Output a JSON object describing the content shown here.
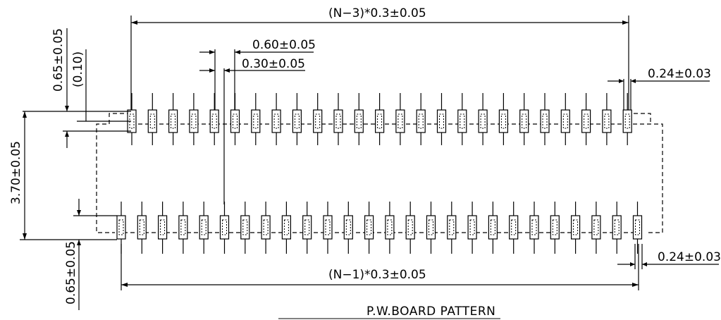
{
  "drawing": {
    "title": "P.W.BOARD PATTERN",
    "dims": {
      "top_span": "(N−3)*0.3±0.05",
      "bottom_span": "(N−1)*0.3±0.05",
      "pitch_upper": "0.60±0.05",
      "pitch_lower": "0.30±0.05",
      "pad_width_top": "0.24±0.03",
      "pad_width_bottom": "0.24±0.03",
      "left_offset_a": "0.65±0.05",
      "left_offset_b": "(0.10)",
      "row_spacing": "3.70±0.05",
      "bottom_offset": "0.65±0.05"
    },
    "pad_counts": {
      "top_row": 25,
      "bottom_row": 26
    },
    "line_color": "#000000"
  }
}
